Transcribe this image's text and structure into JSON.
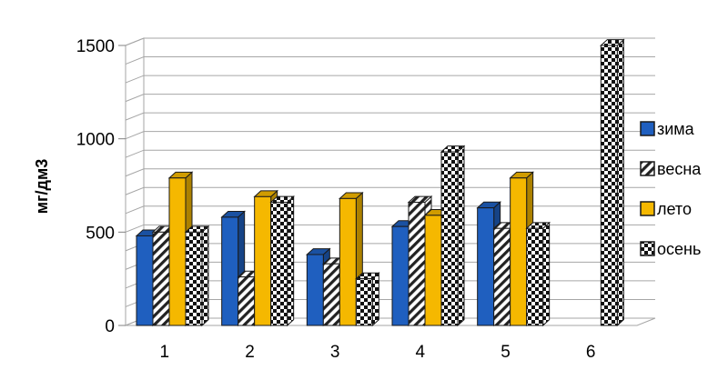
{
  "chart_data": {
    "type": "bar",
    "title": "",
    "xlabel": "",
    "ylabel": "мг/дм3",
    "ylim": [
      0,
      1500
    ],
    "yticks": [
      0,
      500,
      1000,
      1500
    ],
    "grid": true,
    "legend_position": "right",
    "categories": [
      "1",
      "2",
      "3",
      "4",
      "5",
      "6"
    ],
    "series": [
      {
        "name": "зима",
        "values": [
          480,
          580,
          380,
          530,
          630,
          null
        ],
        "color": "#1f5fbf",
        "pattern": "solid"
      },
      {
        "name": "весна",
        "values": [
          500,
          260,
          330,
          660,
          520,
          null
        ],
        "color": "#ffffff",
        "pattern": "diagonal"
      },
      {
        "name": "лето",
        "values": [
          790,
          690,
          680,
          590,
          790,
          null
        ],
        "color": "#f5b800",
        "pattern": "solid"
      },
      {
        "name": "осень",
        "values": [
          500,
          660,
          250,
          930,
          520,
          1500
        ],
        "color": "#ffffff",
        "pattern": "checker"
      }
    ]
  }
}
